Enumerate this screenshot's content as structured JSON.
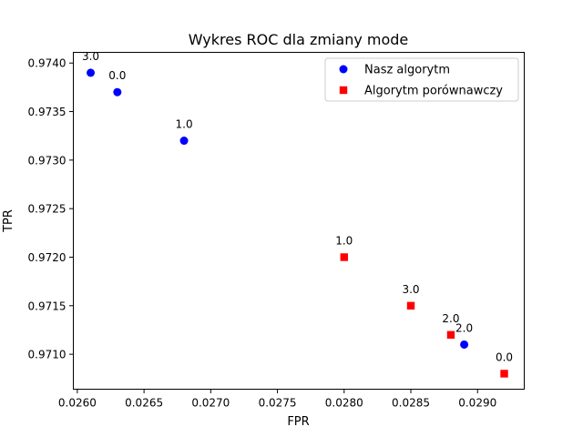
{
  "chart_data": {
    "type": "scatter",
    "title": "Wykres ROC dla zmiany mode",
    "xlabel": "FPR",
    "ylabel": "TPR",
    "xlim": [
      0.02597,
      0.02935
    ],
    "ylim": [
      0.97064,
      0.97411
    ],
    "xticks": [
      0.026,
      0.0265,
      0.027,
      0.0275,
      0.028,
      0.0285,
      0.029
    ],
    "xtick_labels": [
      "0.0260",
      "0.0265",
      "0.0270",
      "0.0275",
      "0.0280",
      "0.0285",
      "0.0290"
    ],
    "yticks": [
      0.971,
      0.9715,
      0.972,
      0.9725,
      0.973,
      0.9735,
      0.974
    ],
    "ytick_labels": [
      "0.9710",
      "0.9715",
      "0.9720",
      "0.9725",
      "0.9730",
      "0.9735",
      "0.9740"
    ],
    "legend_position": "top-right",
    "series": [
      {
        "name": "Nasz algorytm",
        "marker": "circle",
        "color": "#0000ff",
        "points": [
          {
            "x": 0.0261,
            "y": 0.9739,
            "label": "3.0"
          },
          {
            "x": 0.0263,
            "y": 0.9737,
            "label": "0.0"
          },
          {
            "x": 0.0268,
            "y": 0.9732,
            "label": "1.0"
          },
          {
            "x": 0.0289,
            "y": 0.9711,
            "label": "2.0"
          }
        ]
      },
      {
        "name": "Algorytm porównawczy",
        "marker": "square",
        "color": "#ff0000",
        "points": [
          {
            "x": 0.028,
            "y": 0.972,
            "label": "1.0"
          },
          {
            "x": 0.0285,
            "y": 0.9715,
            "label": "3.0"
          },
          {
            "x": 0.0288,
            "y": 0.9712,
            "label": "2.0"
          },
          {
            "x": 0.0292,
            "y": 0.9708,
            "label": "0.0"
          }
        ]
      }
    ]
  }
}
